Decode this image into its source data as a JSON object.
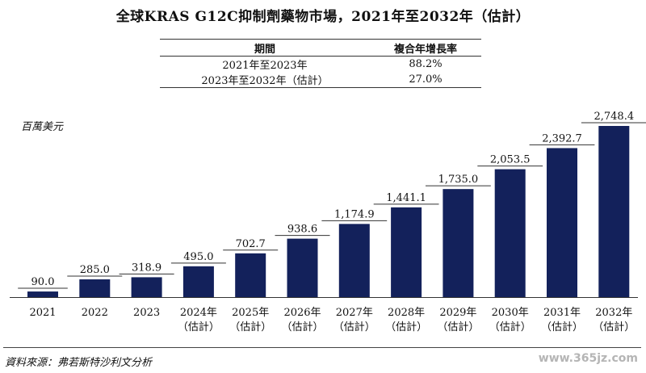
{
  "title": "全球KRAS G12C抑制劑藥物市場，2021年至2032年（估計）",
  "cagr_table": {
    "headers": [
      "期間",
      "複合年增長率"
    ],
    "rows": [
      [
        "2021年至2023年",
        "88.2%"
      ],
      [
        "2023年至2032年（估計）",
        "27.0%"
      ]
    ]
  },
  "source": "資料來源：弗若斯特沙利文分析",
  "watermark": "www.365jz.com",
  "chart_data": {
    "type": "bar",
    "title": "全球KRAS G12C抑制劑藥物市場，2021年至2032年（估計）",
    "ylabel": "百萬美元",
    "xlabel": "",
    "categories": [
      "2021",
      "2022",
      "2023",
      "2024年（估計）",
      "2025年（估計）",
      "2026年（估計）",
      "2027年（估計）",
      "2028年（估計）",
      "2029年（估計）",
      "2030年（估計）",
      "2031年（估計）",
      "2032年（估計）"
    ],
    "category_lines": [
      [
        "2021"
      ],
      [
        "2022"
      ],
      [
        "2023"
      ],
      [
        "2024年",
        "（估計）"
      ],
      [
        "2025年",
        "（估計）"
      ],
      [
        "2026年",
        "（估計）"
      ],
      [
        "2027年",
        "（估計）"
      ],
      [
        "2028年",
        "（估計）"
      ],
      [
        "2029年",
        "（估計）"
      ],
      [
        "2030年",
        "（估計）"
      ],
      [
        "2031年",
        "（估計）"
      ],
      [
        "2032年",
        "（估計）"
      ]
    ],
    "values": [
      90.0,
      285.0,
      318.9,
      495.0,
      702.7,
      938.6,
      1174.9,
      1441.1,
      1735.0,
      2053.5,
      2392.7,
      2748.4
    ],
    "value_labels": [
      "90.0",
      "285.0",
      "318.9",
      "495.0",
      "702.7",
      "938.6",
      "1,174.9",
      "1,441.1",
      "1,735.0",
      "2,053.5",
      "2,392.7",
      "2,748.4"
    ],
    "ylim": [
      0,
      2748.4
    ],
    "bar_color": "#13215b",
    "grid": false,
    "legend": "none"
  }
}
